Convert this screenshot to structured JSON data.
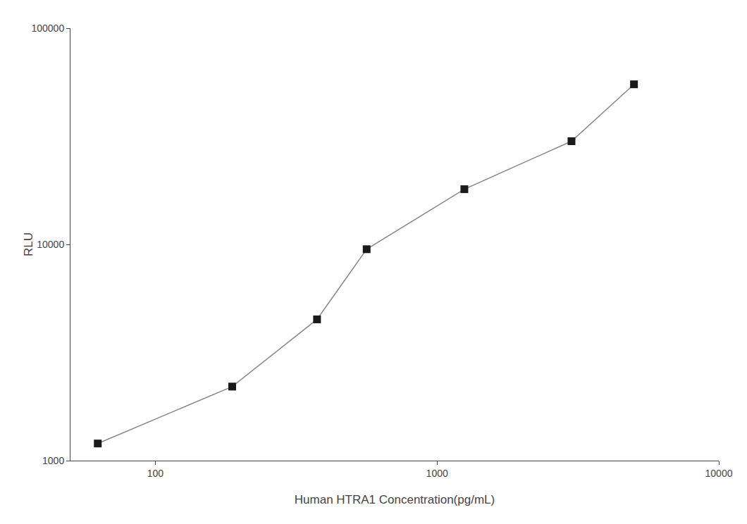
{
  "chart_data": {
    "type": "line",
    "x": [
      62.5,
      187.5,
      375,
      562.5,
      1250,
      3000,
      5000
    ],
    "series": [
      {
        "type": "line",
        "color": "#888888",
        "values": [
          1200,
          2200,
          4500,
          9500,
          18000,
          30000,
          55000
        ]
      },
      {
        "type": "scatter",
        "color": "#1a1a1a",
        "marker": "square",
        "values": [
          1200,
          2200,
          4500,
          9500,
          18000,
          30000,
          55000
        ]
      }
    ],
    "xlabel": "Human HTRA1 Concentration(pg/mL)",
    "ylabel": "RLU",
    "log": true,
    "xlim": [
      50,
      10000
    ],
    "ylim": [
      1000,
      100000
    ],
    "xticks": [
      100,
      1000,
      10000
    ],
    "yticks": [
      1000,
      10000,
      100000
    ],
    "grid": false,
    "background_color": "#ffffff"
  }
}
